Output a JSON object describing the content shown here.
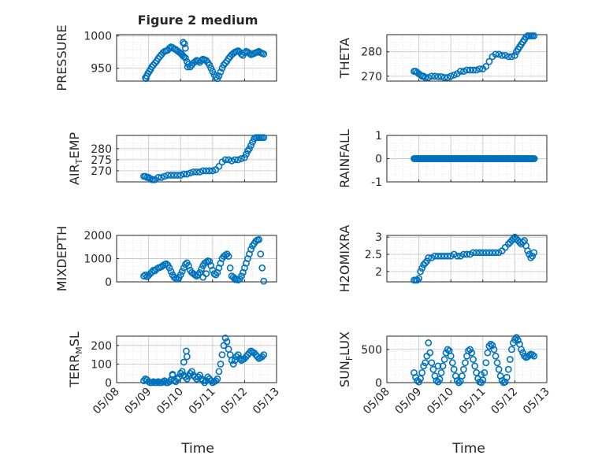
{
  "figure": {
    "title": "Figure 2 medium",
    "xlabel": "Time",
    "x_ticks": [
      "05/08",
      "05/09",
      "05/10",
      "05/11",
      "05/12",
      "05/13"
    ]
  },
  "colors": {
    "marker": "#0072BD",
    "grid": "#d9d9d9",
    "axis": "#262626"
  },
  "chart_data": [
    {
      "type": "scatter",
      "ylabel": "PRESSURE",
      "xlim": [
        "05/08",
        "05/13"
      ],
      "ylim": [
        930,
        1002
      ],
      "y_ticks": [
        950,
        1000
      ],
      "grid": true,
      "x": [
        0.9,
        0.92,
        0.94,
        0.98,
        1.02,
        1.06,
        1.1,
        1.15,
        1.2,
        1.25,
        1.3,
        1.35,
        1.4,
        1.45,
        1.5,
        1.55,
        1.6,
        1.65,
        1.7,
        1.75,
        1.8,
        1.85,
        1.9,
        1.95,
        2.0,
        2.03,
        2.06,
        2.1,
        2.15,
        2.2,
        2.25,
        2.3,
        2.35,
        2.4,
        2.45,
        2.5,
        2.55,
        2.6,
        2.65,
        2.7,
        2.75,
        2.8,
        2.85,
        2.9,
        2.95,
        3.0,
        3.05,
        3.1,
        3.15,
        3.2,
        3.25,
        3.3,
        3.35,
        3.4,
        3.45,
        3.5,
        3.55,
        3.6,
        3.65,
        3.7,
        3.75,
        3.8,
        3.85,
        3.9,
        3.95,
        4.0,
        4.05,
        4.1,
        4.15,
        4.2,
        4.25,
        4.3,
        4.35,
        4.4,
        4.45,
        4.5,
        4.55,
        4.6
      ],
      "y": [
        935,
        934,
        938,
        942,
        945,
        948,
        952,
        955,
        958,
        961,
        965,
        968,
        971,
        974,
        976,
        977,
        978,
        981,
        983,
        982,
        980,
        979,
        977,
        975,
        973,
        972,
        970,
        968,
        966,
        960,
        956,
        952,
        955,
        958,
        960,
        962,
        961,
        959,
        962,
        964,
        963,
        962,
        959,
        955,
        950,
        945,
        940,
        936,
        934,
        938,
        944,
        950,
        955,
        958,
        961,
        965,
        968,
        971,
        973,
        975,
        976,
        977,
        975,
        972,
        970,
        974,
        976,
        975,
        973,
        971,
        972,
        973,
        974,
        975,
        976,
        974,
        973,
        972
      ],
      "outliers": [
        [
          2.08,
          990
        ],
        [
          2.12,
          988
        ],
        [
          2.15,
          981
        ],
        [
          2.22,
          952
        ]
      ]
    },
    {
      "type": "scatter",
      "ylabel": "THETA",
      "xlim": [
        "05/08",
        "05/13"
      ],
      "ylim": [
        268,
        287
      ],
      "y_ticks": [
        270,
        280
      ],
      "grid": true,
      "x": [
        0.85,
        0.9,
        0.95,
        1.0,
        1.05,
        1.1,
        1.15,
        1.2,
        1.3,
        1.4,
        1.5,
        1.6,
        1.7,
        1.8,
        1.9,
        2.0,
        2.1,
        2.2,
        2.3,
        2.4,
        2.5,
        2.6,
        2.7,
        2.8,
        2.9,
        3.0,
        3.1,
        3.2,
        3.3,
        3.4,
        3.5,
        3.6,
        3.7,
        3.8,
        3.9,
        4.0,
        4.05,
        4.1,
        4.15,
        4.2,
        4.25,
        4.3,
        4.35,
        4.4,
        4.45,
        4.5,
        4.55,
        4.6
      ],
      "y": [
        272,
        272,
        271.5,
        271,
        270.5,
        270,
        270,
        269.5,
        269.5,
        270,
        270,
        269.8,
        269.8,
        269.5,
        269.5,
        270,
        270.5,
        271,
        272,
        272,
        272.5,
        272.5,
        272.5,
        272.5,
        273,
        273,
        274,
        276,
        278,
        279,
        279,
        278.5,
        278.5,
        278,
        278,
        278.5,
        280,
        281,
        282,
        283,
        284,
        285,
        286,
        286.5,
        286.5,
        286.5,
        286.5,
        286.5
      ]
    },
    {
      "type": "scatter",
      "ylabel": "AIR_TEMP",
      "xlim": [
        "05/08",
        "05/13"
      ],
      "ylim": [
        265,
        286
      ],
      "y_ticks": [
        270,
        275,
        280
      ],
      "grid": true,
      "x": [
        0.85,
        0.9,
        0.95,
        1.0,
        1.05,
        1.1,
        1.15,
        1.2,
        1.3,
        1.4,
        1.5,
        1.6,
        1.7,
        1.8,
        1.9,
        2.0,
        2.1,
        2.2,
        2.3,
        2.4,
        2.5,
        2.6,
        2.7,
        2.8,
        2.9,
        3.0,
        3.1,
        3.2,
        3.3,
        3.4,
        3.5,
        3.6,
        3.7,
        3.8,
        3.9,
        4.0,
        4.05,
        4.1,
        4.15,
        4.2,
        4.25,
        4.3,
        4.35,
        4.4,
        4.45,
        4.5,
        4.55,
        4.6
      ],
      "y": [
        267.5,
        267.5,
        267,
        267,
        266.5,
        266,
        266,
        266,
        267,
        267,
        267.5,
        268,
        268,
        268,
        268,
        268,
        268.5,
        268.5,
        269,
        269.5,
        269.5,
        269.5,
        270,
        270,
        270,
        270,
        270.5,
        272,
        274,
        275,
        275,
        274.5,
        275,
        275,
        275.5,
        276,
        277.5,
        279,
        280,
        281.5,
        283,
        284.5,
        285,
        285,
        285,
        285,
        285,
        285
      ]
    },
    {
      "type": "scatter",
      "ylabel": "RAINFALL",
      "xlim": [
        "05/08",
        "05/13"
      ],
      "ylim": [
        -1,
        1
      ],
      "y_ticks": [
        -1,
        0,
        1
      ],
      "grid": true,
      "x_start": 0.85,
      "x_end": 4.62,
      "constant_value": 0
    },
    {
      "type": "scatter",
      "ylabel": "MIXDEPTH",
      "xlim": [
        "05/08",
        "05/13"
      ],
      "ylim": [
        0,
        2000
      ],
      "y_ticks": [
        0,
        1000,
        2000
      ],
      "grid": true,
      "x": [
        0.85,
        0.9,
        0.95,
        1.0,
        1.05,
        1.1,
        1.15,
        1.2,
        1.25,
        1.3,
        1.35,
        1.4,
        1.45,
        1.5,
        1.55,
        1.6,
        1.65,
        1.7,
        1.75,
        1.8,
        1.85,
        1.9,
        1.95,
        2.0,
        2.05,
        2.1,
        2.15,
        2.2,
        2.25,
        2.3,
        2.35,
        2.4,
        2.45,
        2.5,
        2.55,
        2.6,
        2.65,
        2.7,
        2.75,
        2.8,
        2.85,
        2.9,
        2.95,
        3.0,
        3.05,
        3.1,
        3.15,
        3.2,
        3.25,
        3.3,
        3.35,
        3.4,
        3.45,
        3.5,
        3.55,
        3.6,
        3.65,
        3.7,
        3.75,
        3.8,
        3.85,
        3.9,
        3.95,
        4.0,
        4.05,
        4.1,
        4.15,
        4.2,
        4.25,
        4.3,
        4.35,
        4.4,
        4.45
      ],
      "y": [
        250,
        300,
        220,
        280,
        350,
        420,
        500,
        480,
        550,
        600,
        620,
        650,
        700,
        750,
        780,
        720,
        600,
        450,
        300,
        200,
        150,
        120,
        180,
        300,
        450,
        600,
        750,
        820,
        700,
        500,
        400,
        350,
        300,
        250,
        300,
        400,
        550,
        700,
        800,
        850,
        900,
        880,
        700,
        500,
        350,
        300,
        400,
        600,
        800,
        1000,
        1100,
        1150,
        1200,
        1100,
        600,
        250,
        200,
        150,
        100,
        80,
        120,
        250,
        400,
        600,
        800,
        1000,
        1200,
        1400,
        1550,
        1650,
        1750,
        1800,
        1820
      ],
      "outliers": [
        [
          4.5,
          1200
        ],
        [
          4.55,
          600
        ],
        [
          4.6,
          30
        ],
        [
          2.7,
          200
        ],
        [
          2.8,
          350
        ],
        [
          3.7,
          100
        ]
      ]
    },
    {
      "type": "scatter",
      "ylabel": "H2OMIXRA",
      "xlim": [
        "05/08",
        "05/13"
      ],
      "ylim": [
        1.7,
        3.05
      ],
      "y_ticks": [
        2,
        2.5,
        3
      ],
      "grid": true,
      "x": [
        0.85,
        0.9,
        0.95,
        1.0,
        1.05,
        1.1,
        1.15,
        1.2,
        1.25,
        1.3,
        1.4,
        1.5,
        1.6,
        1.7,
        1.8,
        1.9,
        2.0,
        2.1,
        2.2,
        2.3,
        2.4,
        2.5,
        2.6,
        2.7,
        2.8,
        2.9,
        3.0,
        3.1,
        3.2,
        3.3,
        3.4,
        3.5,
        3.6,
        3.7,
        3.8,
        3.85,
        3.9,
        3.95,
        4.0,
        4.05,
        4.1,
        4.15,
        4.2,
        4.25,
        4.3,
        4.35,
        4.4,
        4.45,
        4.5,
        4.55,
        4.6
      ],
      "y": [
        1.75,
        1.75,
        1.75,
        1.8,
        2.0,
        2.1,
        2.2,
        2.25,
        2.3,
        2.4,
        2.4,
        2.45,
        2.45,
        2.45,
        2.45,
        2.45,
        2.45,
        2.5,
        2.45,
        2.45,
        2.5,
        2.5,
        2.5,
        2.55,
        2.55,
        2.55,
        2.55,
        2.55,
        2.55,
        2.55,
        2.55,
        2.55,
        2.6,
        2.7,
        2.8,
        2.85,
        2.9,
        2.95,
        3.0,
        2.95,
        2.9,
        2.85,
        2.8,
        2.85,
        2.9,
        2.75,
        2.6,
        2.5,
        2.4,
        2.45,
        2.55
      ]
    },
    {
      "type": "scatter",
      "ylabel": "TERR_MSL",
      "xlim": [
        "05/08",
        "05/13"
      ],
      "ylim": [
        0,
        250
      ],
      "y_ticks": [
        0,
        100,
        200
      ],
      "grid": true,
      "x": [
        0.85,
        0.9,
        0.95,
        1.0,
        1.05,
        1.1,
        1.15,
        1.2,
        1.25,
        1.3,
        1.35,
        1.4,
        1.45,
        1.5,
        1.55,
        1.6,
        1.65,
        1.7,
        1.75,
        1.8,
        1.85,
        1.9,
        1.95,
        2.0,
        2.05,
        2.1,
        2.15,
        2.2,
        2.25,
        2.3,
        2.35,
        2.4,
        2.45,
        2.5,
        2.55,
        2.6,
        2.65,
        2.7,
        2.75,
        2.8,
        2.85,
        2.9,
        2.95,
        3.0,
        3.05,
        3.1,
        3.15,
        3.2,
        3.25,
        3.3,
        3.35,
        3.4,
        3.45,
        3.5,
        3.55,
        3.6,
        3.65,
        3.7,
        3.75,
        3.8,
        3.85,
        3.9,
        3.95,
        4.0,
        4.05,
        4.1,
        4.15,
        4.2,
        4.25,
        4.3,
        4.35,
        4.4,
        4.45,
        4.5,
        4.55,
        4.6
      ],
      "y": [
        10,
        20,
        15,
        5,
        0,
        0,
        5,
        0,
        0,
        5,
        0,
        0,
        5,
        10,
        0,
        0,
        5,
        15,
        40,
        10,
        5,
        20,
        30,
        50,
        60,
        40,
        30,
        20,
        35,
        50,
        60,
        40,
        30,
        20,
        30,
        40,
        20,
        10,
        0,
        10,
        30,
        20,
        10,
        0,
        5,
        10,
        20,
        60,
        100,
        150,
        200,
        240,
        220,
        180,
        150,
        120,
        100,
        120,
        140,
        150,
        130,
        120,
        125,
        130,
        140,
        150,
        160,
        170,
        165,
        160,
        150,
        140,
        130,
        135,
        140,
        150
      ],
      "outliers": [
        [
          2.18,
          170
        ],
        [
          2.2,
          140
        ],
        [
          2.1,
          110
        ],
        [
          1.75,
          45
        ]
      ]
    },
    {
      "type": "scatter",
      "ylabel": "SUN_FLUX",
      "xlim": [
        "05/08",
        "05/13"
      ],
      "ylim": [
        0,
        700
      ],
      "y_ticks": [
        0,
        500
      ],
      "grid": true,
      "x": [
        0.85,
        0.9,
        0.95,
        1.0,
        1.05,
        1.1,
        1.15,
        1.2,
        1.25,
        1.3,
        1.35,
        1.4,
        1.45,
        1.5,
        1.55,
        1.6,
        1.65,
        1.7,
        1.75,
        1.8,
        1.85,
        1.9,
        1.95,
        2.0,
        2.05,
        2.1,
        2.15,
        2.2,
        2.25,
        2.3,
        2.35,
        2.4,
        2.45,
        2.5,
        2.55,
        2.6,
        2.65,
        2.7,
        2.75,
        2.8,
        2.85,
        2.9,
        2.95,
        3.0,
        3.05,
        3.1,
        3.15,
        3.2,
        3.25,
        3.3,
        3.35,
        3.4,
        3.45,
        3.5,
        3.55,
        3.6,
        3.65,
        3.7,
        3.75,
        3.8,
        3.85,
        3.9,
        3.95,
        4.0,
        4.05,
        4.1,
        4.15,
        4.2,
        4.25,
        4.3,
        4.35,
        4.4,
        4.45,
        4.5,
        4.55,
        4.6
      ],
      "y": [
        150,
        80,
        30,
        10,
        60,
        150,
        250,
        300,
        400,
        600,
        450,
        300,
        200,
        100,
        30,
        10,
        50,
        150,
        250,
        350,
        450,
        500,
        480,
        400,
        300,
        200,
        100,
        30,
        0,
        20,
        100,
        200,
        300,
        400,
        480,
        500,
        450,
        350,
        250,
        150,
        60,
        10,
        0,
        40,
        150,
        300,
        450,
        550,
        580,
        560,
        500,
        400,
        300,
        200,
        100,
        30,
        0,
        10,
        80,
        200,
        350,
        500,
        600,
        650,
        680,
        640,
        580,
        500,
        450,
        400,
        380,
        390,
        410,
        430,
        420,
        400
      ],
      "outliers": [
        [
          1.6,
          250
        ],
        [
          2.95,
          120
        ]
      ]
    }
  ]
}
